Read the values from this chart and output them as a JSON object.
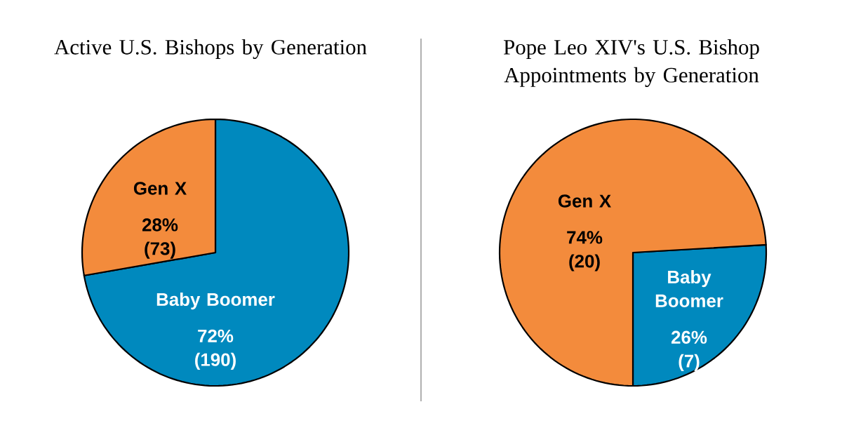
{
  "chart_data": [
    {
      "type": "pie",
      "title": "Active U.S. Bishops by Generation",
      "categories": [
        "Baby Boomer",
        "Gen X"
      ],
      "values": [
        190,
        73
      ],
      "value_labels": [
        "72% (190)",
        "28% (73)"
      ],
      "colors": [
        "#0089be",
        "#f38b3c"
      ]
    },
    {
      "type": "pie",
      "title": "Pope Leo XIV's U.S. Bishop Appointments by Generation",
      "categories": [
        "Baby Boomer",
        "Gen X"
      ],
      "values": [
        7,
        20
      ],
      "value_labels": [
        "26% (7)",
        "74% (20)"
      ],
      "colors": [
        "#0089be",
        "#f38b3c"
      ]
    }
  ]
}
